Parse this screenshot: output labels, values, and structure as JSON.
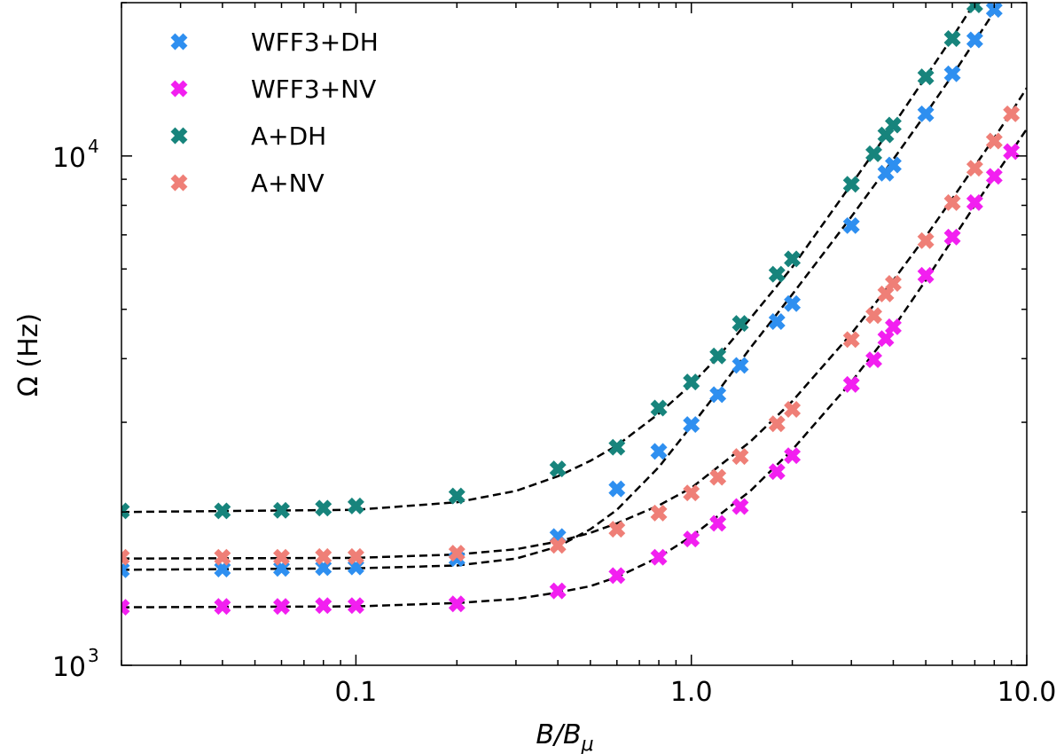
{
  "chart_data": {
    "type": "scatter",
    "xlabel_main": "B/B",
    "xlabel_sub": "μ",
    "ylabel": "Ω (Hz)",
    "xscale": "log",
    "yscale": "log",
    "xlim": [
      0.02,
      10.0
    ],
    "ylim": [
      1000,
      20000
    ],
    "x_tick_labels": [
      {
        "value": 0.1,
        "label": "0.1"
      },
      {
        "value": 1.0,
        "label": "1.0"
      },
      {
        "value": 10.0,
        "label": "10.0"
      }
    ],
    "y_tick_labels": [
      {
        "value": 1000,
        "base": "10",
        "exp": "3"
      },
      {
        "value": 10000,
        "base": "10",
        "exp": "4"
      }
    ],
    "legend_position": "top-left",
    "fit_line_style": "black dashed",
    "series": [
      {
        "name": "WFF3+DH",
        "color": "#2e8ff0",
        "points": [
          [
            0.02,
            1540
          ],
          [
            0.04,
            1545
          ],
          [
            0.06,
            1550
          ],
          [
            0.08,
            1555
          ],
          [
            0.1,
            1560
          ],
          [
            0.2,
            1620
          ],
          [
            0.4,
            1790
          ],
          [
            0.6,
            2220
          ],
          [
            0.8,
            2630
          ],
          [
            1.0,
            2970
          ],
          [
            1.2,
            3400
          ],
          [
            1.4,
            3880
          ],
          [
            1.8,
            4730
          ],
          [
            2.0,
            5130
          ],
          [
            3.0,
            7300
          ],
          [
            3.8,
            9250
          ],
          [
            4.0,
            9600
          ],
          [
            5.0,
            12100
          ],
          [
            6.0,
            14500
          ],
          [
            7.0,
            16900
          ],
          [
            8.0,
            19400
          ]
        ],
        "fit": [
          [
            0.02,
            1540
          ],
          [
            0.1,
            1550
          ],
          [
            0.2,
            1570
          ],
          [
            0.3,
            1620
          ],
          [
            0.4,
            1710
          ],
          [
            0.5,
            1850
          ],
          [
            0.6,
            2020
          ],
          [
            0.8,
            2450
          ],
          [
            1.0,
            2950
          ],
          [
            1.2,
            3450
          ],
          [
            1.5,
            4200
          ],
          [
            2.0,
            5350
          ],
          [
            3.0,
            7600
          ],
          [
            4.0,
            9850
          ],
          [
            5.0,
            12100
          ],
          [
            6.0,
            14400
          ],
          [
            7.0,
            16800
          ],
          [
            8.0,
            19200
          ],
          [
            8.3,
            20000
          ]
        ]
      },
      {
        "name": "WFF3+NV",
        "color": "#f21ff0",
        "points": [
          [
            0.02,
            1300
          ],
          [
            0.04,
            1305
          ],
          [
            0.06,
            1305
          ],
          [
            0.08,
            1310
          ],
          [
            0.1,
            1310
          ],
          [
            0.2,
            1320
          ],
          [
            0.4,
            1400
          ],
          [
            0.6,
            1500
          ],
          [
            0.8,
            1630
          ],
          [
            1.0,
            1770
          ],
          [
            1.2,
            1900
          ],
          [
            1.4,
            2050
          ],
          [
            1.8,
            2400
          ],
          [
            2.0,
            2580
          ],
          [
            3.0,
            3560
          ],
          [
            3.5,
            3980
          ],
          [
            3.8,
            4380
          ],
          [
            4.0,
            4620
          ],
          [
            5.0,
            5830
          ],
          [
            6.0,
            6930
          ],
          [
            7.0,
            8100
          ],
          [
            8.0,
            9120
          ],
          [
            9.0,
            10200
          ]
        ],
        "fit": [
          [
            0.02,
            1300
          ],
          [
            0.1,
            1305
          ],
          [
            0.2,
            1325
          ],
          [
            0.3,
            1350
          ],
          [
            0.4,
            1390
          ],
          [
            0.5,
            1430
          ],
          [
            0.6,
            1490
          ],
          [
            0.8,
            1630
          ],
          [
            1.0,
            1790
          ],
          [
            1.5,
            2200
          ],
          [
            2.0,
            2650
          ],
          [
            3.0,
            3600
          ],
          [
            4.0,
            4600
          ],
          [
            5.0,
            5700
          ],
          [
            6.0,
            6850
          ],
          [
            7.0,
            8000
          ],
          [
            8.0,
            9100
          ],
          [
            9.0,
            10200
          ],
          [
            10.0,
            11300
          ]
        ]
      },
      {
        "name": "A+DH",
        "color": "#17847c",
        "points": [
          [
            0.02,
            2010
          ],
          [
            0.04,
            2010
          ],
          [
            0.06,
            2015
          ],
          [
            0.08,
            2035
          ],
          [
            0.1,
            2055
          ],
          [
            0.2,
            2150
          ],
          [
            0.4,
            2430
          ],
          [
            0.6,
            2680
          ],
          [
            0.8,
            3200
          ],
          [
            1.0,
            3600
          ],
          [
            1.2,
            4050
          ],
          [
            1.4,
            4690
          ],
          [
            1.8,
            5860
          ],
          [
            2.0,
            6280
          ],
          [
            3.0,
            8800
          ],
          [
            3.5,
            10100
          ],
          [
            3.8,
            11000
          ],
          [
            4.0,
            11500
          ],
          [
            5.0,
            14300
          ],
          [
            6.0,
            17000
          ],
          [
            7.0,
            19800
          ]
        ],
        "fit": [
          [
            0.02,
            2000
          ],
          [
            0.1,
            2020
          ],
          [
            0.2,
            2090
          ],
          [
            0.3,
            2200
          ],
          [
            0.4,
            2350
          ],
          [
            0.5,
            2520
          ],
          [
            0.6,
            2700
          ],
          [
            0.8,
            3120
          ],
          [
            1.0,
            3560
          ],
          [
            1.2,
            4030
          ],
          [
            1.5,
            4800
          ],
          [
            2.0,
            6050
          ],
          [
            3.0,
            8800
          ],
          [
            4.0,
            11500
          ],
          [
            5.0,
            14300
          ],
          [
            6.0,
            17100
          ],
          [
            7.0,
            20000
          ]
        ]
      },
      {
        "name": "A+NV",
        "color": "#ef7f77",
        "points": [
          [
            0.02,
            1630
          ],
          [
            0.04,
            1630
          ],
          [
            0.06,
            1630
          ],
          [
            0.08,
            1635
          ],
          [
            0.1,
            1635
          ],
          [
            0.2,
            1660
          ],
          [
            0.4,
            1720
          ],
          [
            0.6,
            1850
          ],
          [
            0.8,
            1990
          ],
          [
            1.0,
            2180
          ],
          [
            1.2,
            2340
          ],
          [
            1.4,
            2570
          ],
          [
            1.8,
            2980
          ],
          [
            2.0,
            3180
          ],
          [
            3.0,
            4360
          ],
          [
            3.5,
            4860
          ],
          [
            3.8,
            5360
          ],
          [
            4.0,
            5620
          ],
          [
            5.0,
            6820
          ],
          [
            6.0,
            8100
          ],
          [
            7.0,
            9460
          ],
          [
            8.0,
            10700
          ],
          [
            9.0,
            12100
          ]
        ],
        "fit": [
          [
            0.02,
            1620
          ],
          [
            0.1,
            1625
          ],
          [
            0.2,
            1650
          ],
          [
            0.3,
            1690
          ],
          [
            0.4,
            1750
          ],
          [
            0.5,
            1820
          ],
          [
            0.6,
            1900
          ],
          [
            0.8,
            2060
          ],
          [
            1.0,
            2230
          ],
          [
            1.5,
            2750
          ],
          [
            2.0,
            3300
          ],
          [
            3.0,
            4480
          ],
          [
            4.0,
            5700
          ],
          [
            5.0,
            6950
          ],
          [
            6.0,
            8250
          ],
          [
            7.0,
            9550
          ],
          [
            8.0,
            10850
          ],
          [
            9.0,
            12200
          ],
          [
            10.0,
            13600
          ]
        ]
      }
    ]
  }
}
